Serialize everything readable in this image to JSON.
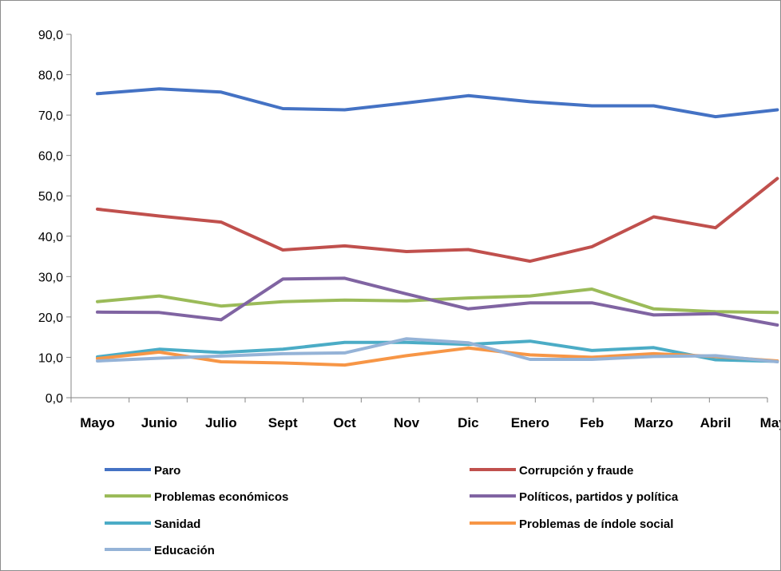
{
  "chart_data": {
    "type": "line",
    "categories": [
      "Mayo",
      "Junio",
      "Julio",
      "Sept",
      "Oct",
      "Nov",
      "Dic",
      "Enero",
      "Feb",
      "Marzo",
      "Abril",
      "Mayo"
    ],
    "ylim": [
      0,
      90
    ],
    "yticks": [
      "0,0",
      "10,0",
      "20,0",
      "30,0",
      "40,0",
      "50,0",
      "60,0",
      "70,0",
      "80,0",
      "90,0"
    ],
    "grid": false,
    "legend_position": "bottom",
    "series": [
      {
        "name": "Paro",
        "color": "#4472c4",
        "values": [
          75.3,
          76.5,
          75.7,
          71.6,
          71.3,
          73.0,
          74.8,
          73.3,
          72.3,
          72.3,
          69.6,
          71.3
        ]
      },
      {
        "name": "Corrupción y fraude",
        "color": "#c0504d",
        "values": [
          46.7,
          45.0,
          43.5,
          36.6,
          37.6,
          36.2,
          36.7,
          33.8,
          37.4,
          44.8,
          42.1,
          54.3
        ]
      },
      {
        "name": "Problemas económicos",
        "color": "#9bbb59",
        "values": [
          23.8,
          25.2,
          22.7,
          23.8,
          24.2,
          24.0,
          24.7,
          25.2,
          26.9,
          22.0,
          21.3,
          21.1
        ]
      },
      {
        "name": "Políticos, partidos y política",
        "color": "#8064a2",
        "values": [
          21.2,
          21.1,
          19.3,
          29.4,
          29.6,
          25.7,
          22.0,
          23.5,
          23.5,
          20.5,
          20.8,
          18.0
        ]
      },
      {
        "name": "Sanidad",
        "color": "#4bacc6",
        "values": [
          10.1,
          12.0,
          11.2,
          12.0,
          13.7,
          13.7,
          13.2,
          14.0,
          11.7,
          12.4,
          9.4,
          9.0
        ]
      },
      {
        "name": "Problemas de índole social",
        "color": "#f79646",
        "values": [
          9.7,
          11.3,
          8.9,
          8.6,
          8.1,
          10.4,
          12.3,
          10.6,
          10.0,
          10.9,
          10.2,
          9.1
        ]
      },
      {
        "name": "Educación",
        "color": "#95b3d7",
        "values": [
          9.1,
          9.8,
          10.3,
          10.9,
          11.1,
          14.6,
          13.6,
          9.5,
          9.5,
          10.2,
          10.4,
          8.9
        ]
      }
    ]
  }
}
